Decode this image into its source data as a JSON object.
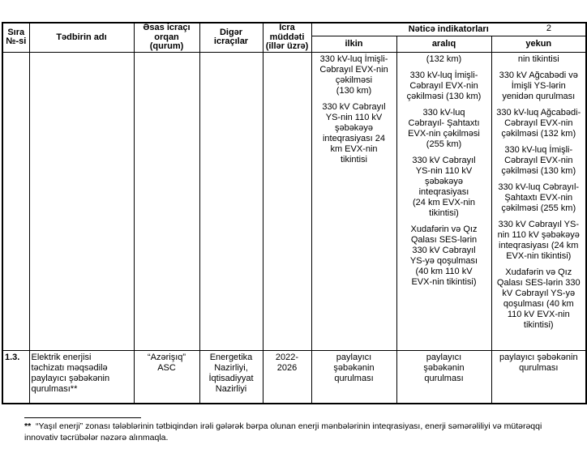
{
  "page": {
    "number": "2",
    "background_color": "#ffffff",
    "text_color": "#000000",
    "border_color": "#000000"
  },
  "table": {
    "headers": {
      "col_no": "Sıra\n№-si",
      "col_name": "Tədbirin adı",
      "col_main_executor": "Əsas icraçı\norqan\n(qurum)",
      "col_other_executors": "Digər\nicraçılar",
      "col_period": "İcra\nmüddəti\n(illər üzrə)",
      "col_indicators": "Nəticə indikatorları",
      "col_initial": "ilkin",
      "col_interim": "aralıq",
      "col_final": "yekun"
    },
    "rows": [
      {
        "no": "",
        "name": "",
        "main_executor": "",
        "other_executors": "",
        "period": "",
        "initial": [
          "330 kV-luq İmişli-\nCəbrayıl EVX-nin\nçəkilməsi\n(130 km)",
          "330 kV Cəbrayıl\nYS-nin 110 kV\nşəbəkəyə\ninteqrasiyası 24\nkm EVX-nin\ntikintisi"
        ],
        "interim": [
          "(132 km)",
          "330 kV-luq İmişli-\nCəbrayıl EVX-nin\nçəkilməsi (130 km)",
          "330 kV-luq\nCəbrayıl- Şahtaxtı\nEVX-nin çəkilməsi\n(255 km)",
          "330 kV Cəbrayıl\nYS-nin 110 kV\nşəbəkəyə\ninteqrasiyası\n(24 km EVX-nin\ntikintisi)",
          "Xudafərin və Qız\nQalası SES-lərin\n330 kV Cəbrayıl\nYS-yə qoşulması\n(40 km 110 kV\nEVX-nin tikintisi)"
        ],
        "final": [
          "nin tikintisi",
          "330 kV Ağcabədi və\nİmişli YS-lərin\nyenidən qurulması",
          "330 kV-luq Ağcabədi-\nCəbrayıl EVX-nin\nçəkilməsi (132 km)",
          "330 kV-luq İmişli-\nCəbrayıl EVX-nin\nçəkilməsi (130 km)",
          "330 kV-luq Cəbrayıl-\nŞahtaxtı EVX-nin\nçəkilməsi (255 km)",
          "330 kV Cəbrayıl YS-\nnin 110 kV şəbəkəyə\ninteqrasiyası (24 km\nEVX-nin tikintisi)",
          "Xudafərin və Qız\nQalası SES-lərin 330\nkV Cəbrayıl YS-yə\nqoşulması (40 km\n110 kV EVX-nin\ntikintisi)"
        ]
      },
      {
        "no": "1.3.",
        "name": "Elektrik enerjisi\ntəchizatı məqsədilə\npaylayıcı şəbəkənin\nqurulması**",
        "main_executor": "“Azərişıq”\nASC",
        "other_executors": "Energetika\nNazirliyi,\nİqtisadiyyat\nNazirliyi",
        "period": "2022-\n2026",
        "initial": "paylayıcı\nşəbəkənin\nqurulması",
        "interim": "paylayıcı\nşəbəkənin\nqurulması",
        "final": "paylayıcı şəbəkənin\nqurulması"
      }
    ]
  },
  "footnote": {
    "marker": "**",
    "text": "  “Yaşıl enerji” zonası tələblərinin tətbiqindən irəli gələrək bərpa olunan enerji mənbələrinin inteqrasiyası, enerji səmərəliliyi və mütərəqqi\ninnovativ təcrübələr nəzərə alınmaqla."
  }
}
